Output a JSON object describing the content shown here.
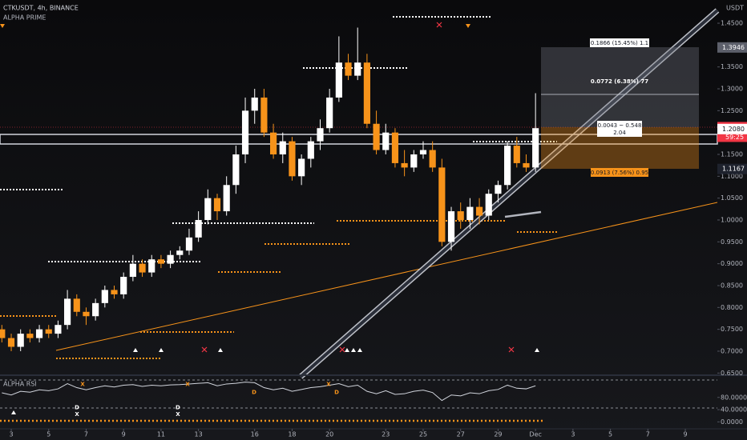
{
  "chart_data": [
    {
      "type": "candlestick",
      "title": "CTKUSDT, 4h, BINANCE",
      "subtitle": "ALPHA PRIME",
      "y_unit": "USDT",
      "x": [
        2.5,
        3,
        3.5,
        4,
        4.5,
        5,
        5.5,
        6,
        6.5,
        7,
        7.5,
        8,
        8.5,
        9,
        9.5,
        10,
        10.5,
        11,
        11.5,
        12,
        12.5,
        13,
        13.5,
        14,
        14.5,
        15,
        15.5,
        16,
        16.5,
        17,
        17.5,
        18,
        18.5,
        19,
        19.5,
        20,
        20.5,
        21,
        21.5,
        22,
        22.5,
        23,
        23.5,
        24,
        24.5,
        25,
        25.5,
        26,
        26.5,
        27,
        27.5,
        28,
        28.5,
        29,
        29.5,
        30,
        30.5,
        31
      ],
      "open": [
        0.75,
        0.73,
        0.71,
        0.74,
        0.73,
        0.75,
        0.74,
        0.76,
        0.82,
        0.79,
        0.78,
        0.81,
        0.84,
        0.83,
        0.87,
        0.9,
        0.88,
        0.91,
        0.9,
        0.92,
        0.93,
        0.96,
        1.0,
        1.05,
        1.02,
        1.08,
        1.15,
        1.25,
        1.28,
        1.2,
        1.15,
        1.18,
        1.1,
        1.14,
        1.18,
        1.21,
        1.28,
        1.36,
        1.33,
        1.36,
        1.22,
        1.16,
        1.2,
        1.13,
        1.12,
        1.15,
        1.16,
        1.12,
        0.95,
        1.02,
        1.0,
        1.03,
        1.01,
        1.06,
        1.08,
        1.17,
        1.13,
        1.12
      ],
      "high": [
        0.76,
        0.74,
        0.75,
        0.75,
        0.76,
        0.76,
        0.77,
        0.84,
        0.83,
        0.8,
        0.82,
        0.85,
        0.85,
        0.88,
        0.92,
        0.91,
        0.92,
        0.92,
        0.93,
        0.94,
        0.98,
        1.02,
        1.07,
        1.06,
        1.1,
        1.17,
        1.28,
        1.3,
        1.3,
        1.22,
        1.2,
        1.19,
        1.15,
        1.19,
        1.23,
        1.3,
        1.42,
        1.38,
        1.44,
        1.38,
        1.25,
        1.22,
        1.21,
        1.16,
        1.16,
        1.18,
        1.18,
        1.14,
        1.03,
        1.04,
        1.05,
        1.05,
        1.07,
        1.09,
        1.18,
        1.19,
        1.15,
        1.29
      ],
      "low": [
        0.72,
        0.7,
        0.7,
        0.72,
        0.72,
        0.73,
        0.73,
        0.75,
        0.78,
        0.76,
        0.77,
        0.8,
        0.82,
        0.82,
        0.86,
        0.87,
        0.87,
        0.89,
        0.89,
        0.91,
        0.92,
        0.95,
        0.99,
        1.0,
        1.01,
        1.06,
        1.13,
        1.22,
        1.19,
        1.14,
        1.13,
        1.09,
        1.08,
        1.12,
        1.16,
        1.2,
        1.27,
        1.32,
        1.32,
        1.21,
        1.15,
        1.15,
        1.12,
        1.1,
        1.11,
        1.14,
        1.11,
        0.94,
        0.93,
        0.98,
        0.98,
        0.99,
        1.0,
        1.04,
        1.07,
        1.12,
        1.11,
        1.11
      ],
      "close": [
        0.73,
        0.71,
        0.74,
        0.73,
        0.75,
        0.74,
        0.76,
        0.82,
        0.79,
        0.78,
        0.81,
        0.84,
        0.83,
        0.87,
        0.9,
        0.88,
        0.91,
        0.9,
        0.92,
        0.93,
        0.96,
        1.0,
        1.05,
        1.02,
        1.08,
        1.15,
        1.25,
        1.28,
        1.2,
        1.15,
        1.18,
        1.1,
        1.14,
        1.18,
        1.21,
        1.28,
        1.36,
        1.33,
        1.36,
        1.22,
        1.16,
        1.2,
        1.13,
        1.12,
        1.15,
        1.16,
        1.12,
        0.95,
        1.02,
        1.0,
        1.03,
        1.01,
        1.06,
        1.08,
        1.17,
        1.13,
        1.12,
        1.21
      ],
      "up_color": "#ffffff",
      "down_color": "#f7931a",
      "xlim": [
        2.4,
        40.71
      ],
      "ylim": [
        0.6469,
        1.5031
      ],
      "yticks": [
        {
          "value": 0.65,
          "label": "0.6500"
        },
        {
          "value": 0.7,
          "label": "0.7000"
        },
        {
          "value": 0.75,
          "label": "0.7500"
        },
        {
          "value": 0.8,
          "label": "0.8000"
        },
        {
          "value": 0.85,
          "label": "0.8500"
        },
        {
          "value": 0.9,
          "label": "0.9000"
        },
        {
          "value": 0.95,
          "label": "0.9500"
        },
        {
          "value": 1.0,
          "label": "1.0000"
        },
        {
          "value": 1.05,
          "label": "1.0500"
        },
        {
          "value": 1.1,
          "label": "1.1000"
        },
        {
          "value": 1.15,
          "label": "1.1500"
        },
        {
          "value": 1.2,
          "label": "1.2000"
        },
        {
          "value": 1.25,
          "label": "1.2500"
        },
        {
          "value": 1.3,
          "label": "1.3000"
        },
        {
          "value": 1.35,
          "label": "1.3500"
        },
        {
          "value": 1.4,
          "label": "1.4000"
        },
        {
          "value": 1.45,
          "label": "1.4500"
        }
      ],
      "grid": false,
      "price_labels": [
        {
          "value": 1.3946,
          "label": "1.3946",
          "color": "#5d606b",
          "text_color": "#ffffff"
        },
        {
          "value": 1.2123,
          "label": "1.2123",
          "color": "#f23645",
          "text_color": "#ffffff"
        },
        {
          "value": 1.208,
          "label": "1.2080",
          "color": "#ffffff",
          "text_color": "#131722"
        },
        {
          "value": 1.1167,
          "label": "1.1167",
          "color": "#1e222d",
          "text_color": "#ffffff"
        }
      ],
      "countdown": "59:25",
      "position_tool": {
        "target": "0.1866 (15.45%) 1.1",
        "mid": "0.0772 (6.38%) 77",
        "entry_line1": "0.0043 ~ 0.548",
        "entry_line2": "2.04",
        "stop": "0.0913 (7.56%) 0.95"
      }
    },
    {
      "type": "line",
      "title": "ALPHA RSI",
      "x": [
        2.5,
        3,
        3.5,
        4,
        4.5,
        5,
        5.5,
        6,
        6.5,
        7,
        7.5,
        8,
        8.5,
        9,
        9.5,
        10,
        10.5,
        11,
        11.5,
        12,
        12.5,
        13,
        13.5,
        14,
        14.5,
        15,
        15.5,
        16,
        16.5,
        17,
        17.5,
        18,
        18.5,
        19,
        19.5,
        20,
        20.5,
        21,
        21.5,
        22,
        22.5,
        23,
        23.5,
        24,
        24.5,
        25,
        25.5,
        26,
        26.5,
        27,
        27.5,
        28,
        28.5,
        29,
        29.5,
        30,
        30.5,
        31
      ],
      "series": [
        {
          "name": "ALPHA RSI",
          "color": "#d1d4dc",
          "values": [
            95,
            88,
            100,
            97,
            105,
            102,
            108,
            125,
            112,
            105,
            112,
            118,
            114,
            120,
            122,
            116,
            120,
            118,
            121,
            122,
            124,
            126,
            128,
            118,
            124,
            126,
            130,
            128,
            112,
            105,
            110,
            100,
            106,
            112,
            115,
            120,
            125,
            115,
            120,
            100,
            92,
            102,
            90,
            92,
            100,
            104,
            96,
            70,
            88,
            85,
            95,
            92,
            102,
            106,
            120,
            110,
            108,
            118
          ]
        }
      ],
      "annotations": [
        {
          "text": "D",
          "x": 6.51,
          "y": 47,
          "color": "#ffffff"
        },
        {
          "text": "X",
          "x": 6.51,
          "y": 24,
          "color": "#ffffff"
        },
        {
          "text": "D",
          "x": 11.9,
          "y": 47,
          "color": "#ffffff"
        },
        {
          "text": "X",
          "x": 11.9,
          "y": 24,
          "color": "#ffffff"
        },
        {
          "text": "D",
          "x": 15.97,
          "y": 97,
          "color": "#f7931a"
        },
        {
          "text": "D",
          "x": 20.38,
          "y": 97,
          "color": "#f7931a"
        },
        {
          "text": "X",
          "x": 6.81,
          "y": 123,
          "color": "#f7931a"
        },
        {
          "text": "X",
          "x": 12.42,
          "y": 123,
          "color": "#f7931a"
        },
        {
          "text": "X",
          "x": 19.95,
          "y": 123,
          "color": "#f7931a"
        }
      ],
      "xlim": [
        2.4,
        40.71
      ],
      "ylim": [
        -20,
        150
      ],
      "yticks": [
        {
          "value": 0,
          "label": "0.0000"
        },
        {
          "value": 40,
          "label": "40.0000"
        },
        {
          "value": 80,
          "label": "80.0000"
        }
      ],
      "xticks": [
        3,
        5,
        7,
        9,
        11,
        13,
        16,
        18,
        20,
        23,
        25,
        27,
        29,
        {
          "value": 31,
          "label": "Dec"
        },
        {
          "value": 33,
          "label": "3"
        },
        {
          "value": 35,
          "label": "5"
        },
        {
          "value": 37,
          "label": "7"
        },
        {
          "value": 39,
          "label": "9"
        }
      ]
    }
  ]
}
